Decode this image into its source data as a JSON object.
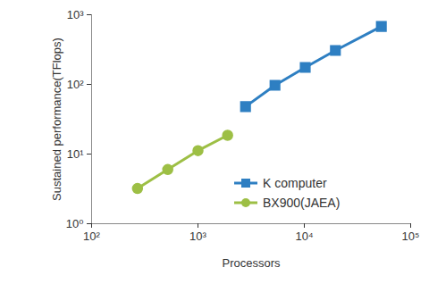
{
  "chart_data": {
    "type": "line",
    "log": true,
    "grid": false,
    "legend": "lower right",
    "xlabel": "Processors",
    "ylabel": "Sustained performance(TFlops)",
    "xlim": [
      100,
      100000
    ],
    "xticks": [
      {
        "value": 100,
        "label": "10²"
      },
      {
        "value": 1000,
        "label": "10³"
      },
      {
        "value": 10000,
        "label": "10⁴"
      },
      {
        "value": 100000,
        "label": "10⁵"
      }
    ],
    "ylim": [
      1,
      1000
    ],
    "yticks": [
      {
        "value": 1,
        "label": "10⁰"
      },
      {
        "value": 10,
        "label": "10¹"
      },
      {
        "value": 100,
        "label": "10²"
      },
      {
        "value": 1000,
        "label": "10³"
      }
    ],
    "series": [
      {
        "name": "K computer",
        "color": "#2e7fc2",
        "marker": "square",
        "x": [
          2800,
          5300,
          10200,
          19600,
          53000
        ],
        "values": [
          48,
          97,
          175,
          307,
          680
        ]
      },
      {
        "name": "BX900(JAEA)",
        "color": "#9dbf45",
        "marker": "circle",
        "x": [
          270,
          520,
          1000,
          1900
        ],
        "values": [
          3.2,
          6.0,
          11.2,
          18.6
        ]
      }
    ]
  }
}
